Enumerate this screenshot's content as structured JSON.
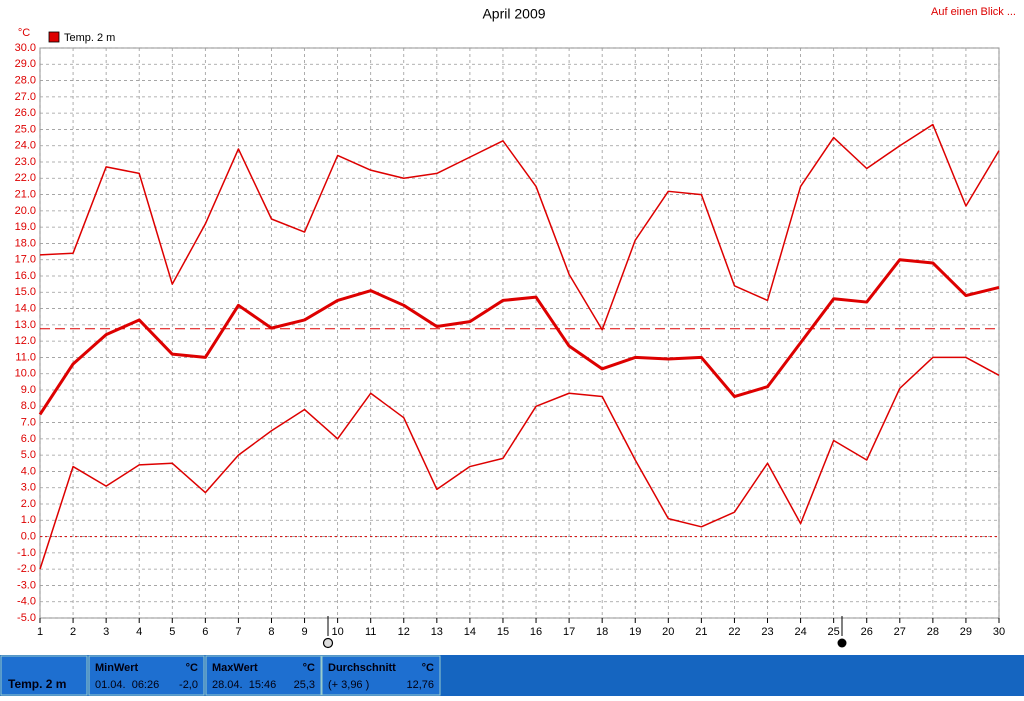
{
  "chart_data": {
    "type": "line",
    "title": "April 2009",
    "link": "Auf einen Blick ...",
    "y_unit": "°C",
    "legend": "Temp. 2 m",
    "color": "#dd0000",
    "x": [
      1,
      2,
      3,
      4,
      5,
      6,
      7,
      8,
      9,
      10,
      11,
      12,
      13,
      14,
      15,
      16,
      17,
      18,
      19,
      20,
      21,
      22,
      23,
      24,
      25,
      26,
      27,
      28,
      29,
      30
    ],
    "xlim": [
      1,
      30
    ],
    "xticks": [
      1,
      2,
      3,
      4,
      5,
      6,
      7,
      8,
      9,
      10,
      11,
      12,
      13,
      14,
      15,
      16,
      17,
      18,
      19,
      20,
      21,
      22,
      23,
      24,
      25,
      26,
      27,
      28,
      29,
      30
    ],
    "ylim": [
      -5,
      30
    ],
    "yticks": [
      {
        "value": 30,
        "label": "30.0"
      },
      {
        "value": 29,
        "label": "29.0"
      },
      {
        "value": 28,
        "label": "28.0"
      },
      {
        "value": 27,
        "label": "27.0"
      },
      {
        "value": 26,
        "label": "26.0"
      },
      {
        "value": 25,
        "label": "25.0"
      },
      {
        "value": 24,
        "label": "24.0"
      },
      {
        "value": 23,
        "label": "23.0"
      },
      {
        "value": 22,
        "label": "22.0"
      },
      {
        "value": 21,
        "label": "21.0"
      },
      {
        "value": 20,
        "label": "20.0"
      },
      {
        "value": 19,
        "label": "19.0"
      },
      {
        "value": 18,
        "label": "18.0"
      },
      {
        "value": 17,
        "label": "17.0"
      },
      {
        "value": 16,
        "label": "16.0"
      },
      {
        "value": 15,
        "label": "15.0"
      },
      {
        "value": 14,
        "label": "14.0"
      },
      {
        "value": 13,
        "label": "13.0"
      },
      {
        "value": 12,
        "label": "12.0"
      },
      {
        "value": 11,
        "label": "11.0"
      },
      {
        "value": 10,
        "label": "10.0"
      },
      {
        "value": 9,
        "label": "9.0"
      },
      {
        "value": 8,
        "label": "8.0"
      },
      {
        "value": 7,
        "label": "7.0"
      },
      {
        "value": 6,
        "label": "6.0"
      },
      {
        "value": 5,
        "label": "5.0"
      },
      {
        "value": 4,
        "label": "4.0"
      },
      {
        "value": 3,
        "label": "3.0"
      },
      {
        "value": 2,
        "label": "2.0"
      },
      {
        "value": 1,
        "label": "1.0"
      },
      {
        "value": 0,
        "label": "0.0"
      },
      {
        "value": -1,
        "label": "-1.0"
      },
      {
        "value": -2,
        "label": "-2.0"
      },
      {
        "value": -3,
        "label": "-3.0"
      },
      {
        "value": -4,
        "label": "-4.0"
      },
      {
        "value": -5,
        "label": "-5.0"
      }
    ],
    "grid": true,
    "zero_line": true,
    "reference_line": 12.76,
    "series": [
      {
        "color": "#dd0000",
        "width": 1.5,
        "values": [
          17.3,
          17.4,
          22.7,
          22.3,
          15.5,
          19.2,
          23.8,
          19.5,
          18.7,
          23.4,
          22.5,
          22.0,
          22.3,
          23.3,
          24.3,
          21.5,
          16.1,
          12.7,
          18.2,
          21.2,
          21.0,
          15.4,
          14.5,
          21.5,
          24.5,
          22.6,
          24.0,
          25.3,
          20.3,
          23.7
        ]
      },
      {
        "color": "#dd0000",
        "width": 3,
        "values": [
          7.5,
          10.6,
          12.4,
          13.3,
          11.2,
          11.0,
          14.2,
          12.8,
          13.3,
          14.5,
          15.1,
          14.2,
          12.9,
          13.2,
          14.5,
          14.7,
          11.7,
          10.3,
          11.0,
          10.9,
          11.0,
          8.6,
          9.2,
          11.9,
          14.6,
          14.4,
          17.0,
          16.8,
          14.8,
          15.3
        ]
      },
      {
        "color": "#dd0000",
        "width": 1.5,
        "values": [
          -2.0,
          4.3,
          3.1,
          4.4,
          4.5,
          2.7,
          5.0,
          6.5,
          7.8,
          6.0,
          8.8,
          7.3,
          2.9,
          4.3,
          4.8,
          8.0,
          8.8,
          8.6,
          4.7,
          1.1,
          0.6,
          1.5,
          4.5,
          0.8,
          5.9,
          4.7,
          9.1,
          11.0,
          11.0,
          9.9
        ]
      }
    ]
  },
  "footer": {
    "label": "Temp. 2 m",
    "stats": [
      {
        "title": "MinWert",
        "unit": "°C",
        "when": "01.04.  06:26",
        "value": "-2,0"
      },
      {
        "title": "MaxWert",
        "unit": "°C",
        "when": "28.04.  15:46",
        "value": "25,3"
      },
      {
        "title": "Durchschnitt",
        "unit": "°C",
        "when": "(+ 3,96 )",
        "value": "12,76"
      }
    ]
  }
}
